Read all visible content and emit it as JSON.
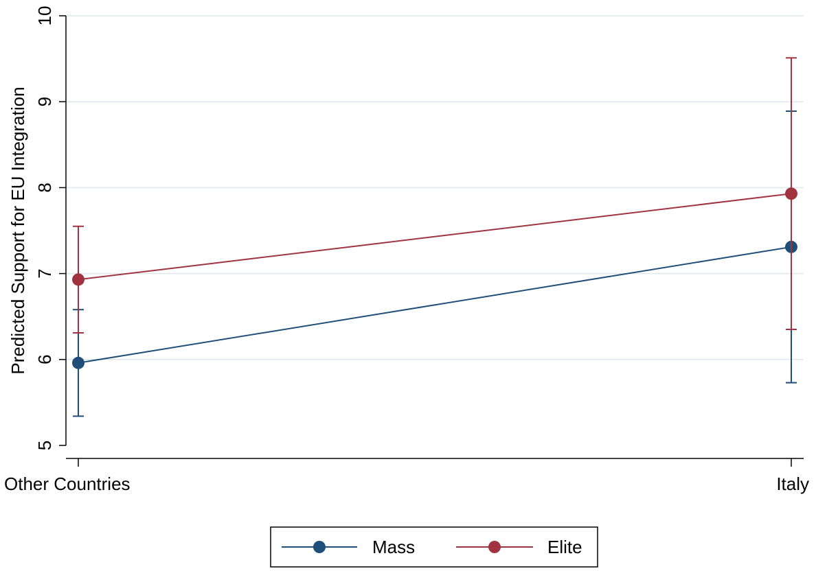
{
  "chart_data": {
    "type": "line",
    "title": "",
    "xlabel": "",
    "ylabel": "Predicted Support for EU Integration",
    "categories": [
      "Other Countries",
      "Italy"
    ],
    "ylim": [
      5,
      10
    ],
    "yticks": [
      5,
      6,
      7,
      8,
      9,
      10
    ],
    "grid": true,
    "legend_position": "bottom-center",
    "series": [
      {
        "name": "Mass",
        "color": "#1f4e79",
        "values": [
          5.96,
          7.31
        ],
        "ci_low": [
          5.34,
          5.73
        ],
        "ci_high": [
          6.58,
          8.89
        ]
      },
      {
        "name": "Elite",
        "color": "#a0333f",
        "values": [
          6.93,
          7.93
        ],
        "ci_low": [
          6.31,
          6.35
        ],
        "ci_high": [
          7.55,
          9.51
        ]
      }
    ]
  }
}
